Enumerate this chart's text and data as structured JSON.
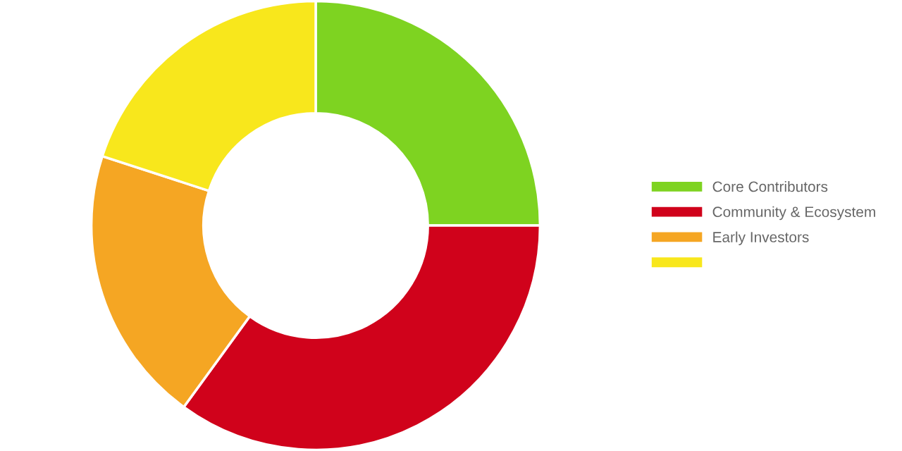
{
  "chart_data": {
    "type": "donut",
    "categories": [
      "Core Contributors",
      "Community & Ecosystem",
      "Early Investors",
      null
    ],
    "values": [
      25,
      35,
      20,
      20
    ],
    "colors": [
      "#7ed321",
      "#d0021b",
      "#f5a623",
      "#f8e71c"
    ],
    "legend": "right"
  }
}
